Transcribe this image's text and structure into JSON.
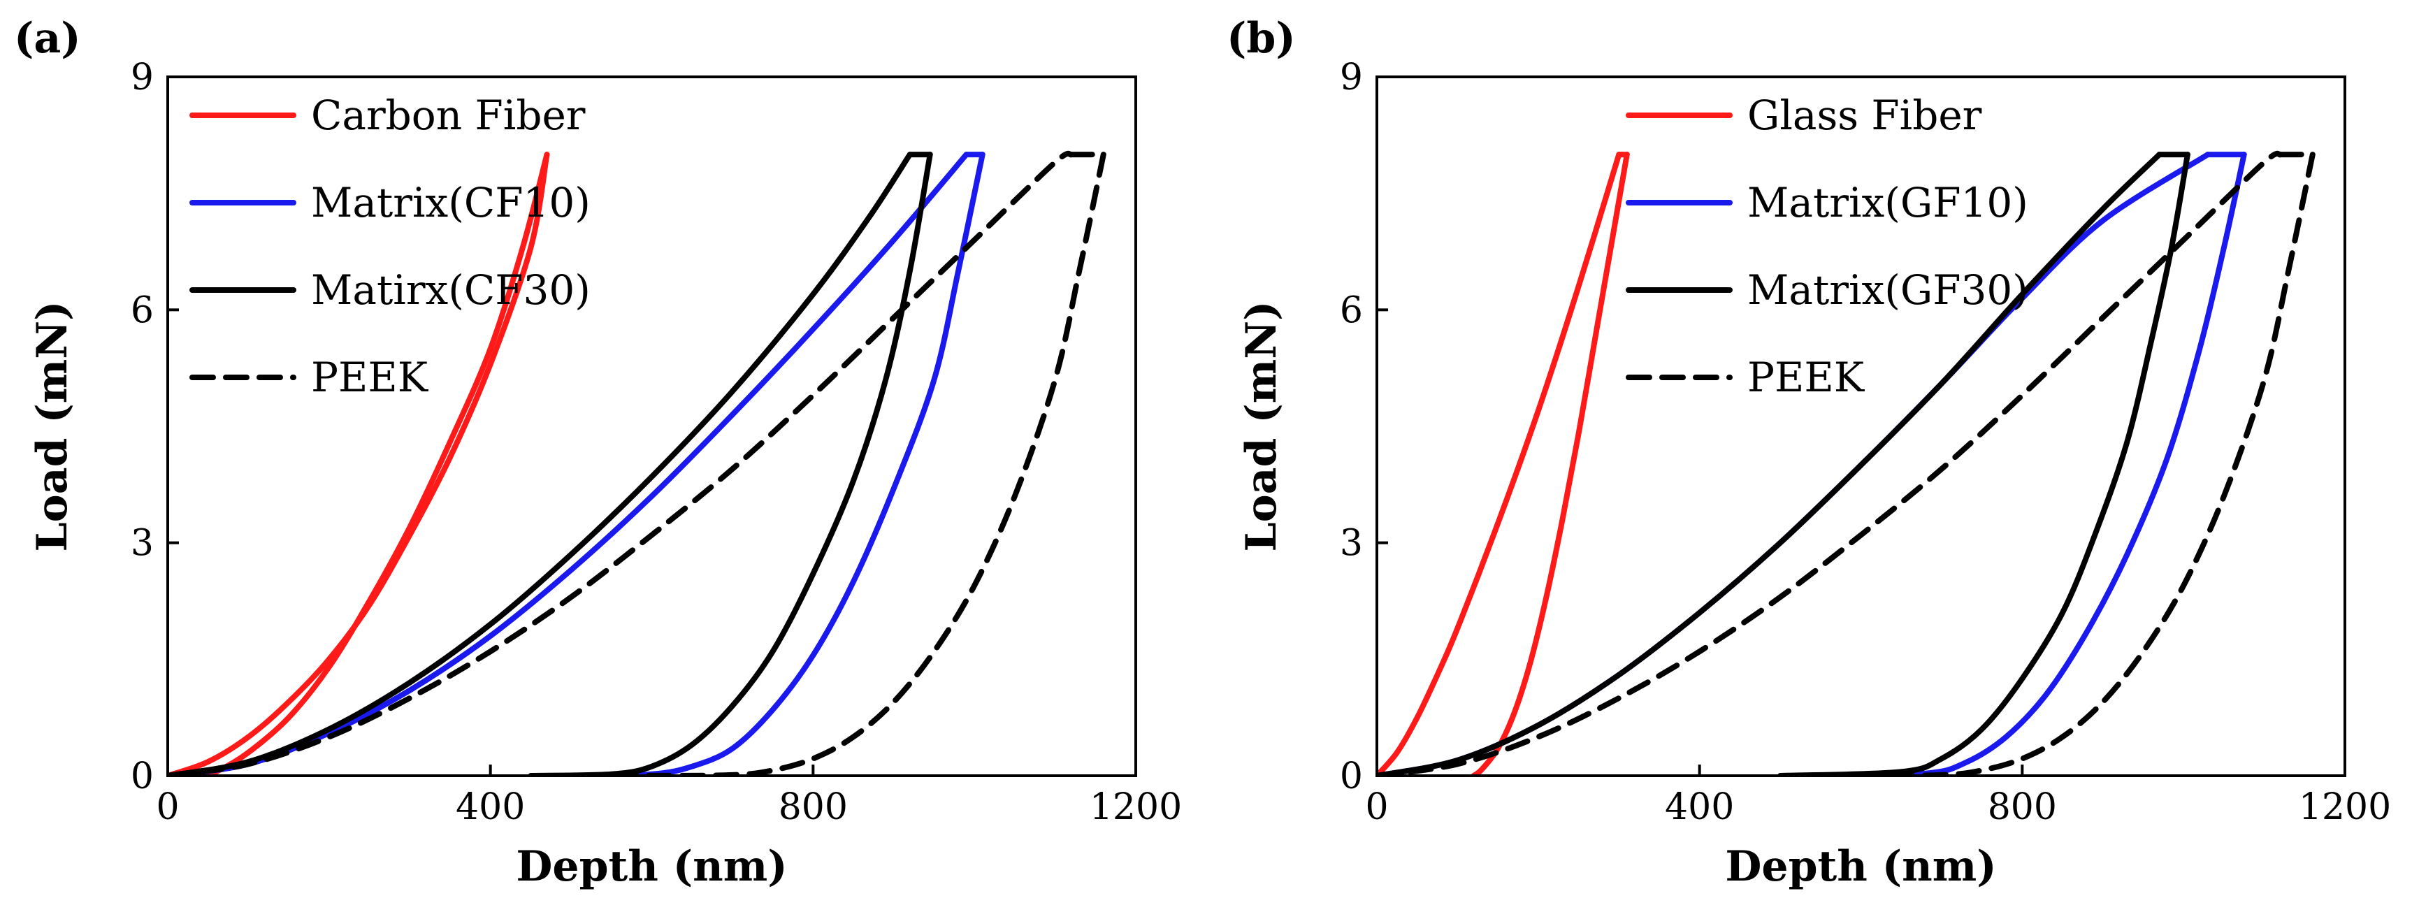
{
  "chart_data": [
    {
      "type": "line",
      "panel_label": "(a)",
      "xlabel": "Depth (nm)",
      "ylabel": "Load (mN)",
      "xlim": [
        0,
        1200
      ],
      "ylim": [
        0,
        9
      ],
      "xticks": [
        0,
        400,
        800,
        1200
      ],
      "yticks": [
        0,
        3,
        6,
        9
      ],
      "legend_position": "top-left",
      "series": [
        {
          "name": "Carbon Fiber",
          "color": "#ff1a1a",
          "dash": "solid",
          "loading": [
            [
              0,
              0
            ],
            [
              50,
              0.18
            ],
            [
              100,
              0.5
            ],
            [
              150,
              0.95
            ],
            [
              200,
              1.5
            ],
            [
              250,
              2.2
            ],
            [
              300,
              3.1
            ],
            [
              350,
              4.1
            ],
            [
              400,
              5.3
            ],
            [
              450,
              6.8
            ],
            [
              470,
              8
            ]
          ],
          "unloading": [
            [
              470,
              8
            ],
            [
              440,
              6.8
            ],
            [
              400,
              5.5
            ],
            [
              350,
              4.3
            ],
            [
              300,
              3.2
            ],
            [
              250,
              2.25
            ],
            [
              200,
              1.4
            ],
            [
              150,
              0.75
            ],
            [
              100,
              0.3
            ],
            [
              60,
              0.05
            ],
            [
              40,
              0
            ]
          ]
        },
        {
          "name": "Matrix(CF10)",
          "color": "#1a1aee",
          "dash": "solid",
          "loading": [
            [
              0,
              0
            ],
            [
              100,
              0.15
            ],
            [
              200,
              0.55
            ],
            [
              300,
              1.1
            ],
            [
              400,
              1.8
            ],
            [
              500,
              2.65
            ],
            [
              600,
              3.6
            ],
            [
              700,
              4.65
            ],
            [
              800,
              5.75
            ],
            [
              900,
              6.9
            ],
            [
              990,
              8
            ]
          ],
          "hold": [
            [
              990,
              8
            ],
            [
              1010,
              8
            ]
          ],
          "unloading": [
            [
              1010,
              8
            ],
            [
              980,
              6.5
            ],
            [
              950,
              5.1
            ],
            [
              900,
              3.7
            ],
            [
              850,
              2.5
            ],
            [
              800,
              1.55
            ],
            [
              750,
              0.85
            ],
            [
              700,
              0.35
            ],
            [
              650,
              0.12
            ],
            [
              600,
              0.02
            ],
            [
              505,
              0
            ]
          ]
        },
        {
          "name": "Matirx(CF30)",
          "color": "#000000",
          "dash": "solid",
          "loading": [
            [
              0,
              0
            ],
            [
              100,
              0.18
            ],
            [
              200,
              0.6
            ],
            [
              300,
              1.2
            ],
            [
              400,
              1.95
            ],
            [
              500,
              2.85
            ],
            [
              600,
              3.85
            ],
            [
              700,
              4.95
            ],
            [
              800,
              6.2
            ],
            [
              870,
              7.2
            ],
            [
              920,
              8
            ]
          ],
          "hold": [
            [
              920,
              8
            ],
            [
              945,
              8
            ]
          ],
          "unloading": [
            [
              945,
              8
            ],
            [
              920,
              6.5
            ],
            [
              890,
              5.1
            ],
            [
              850,
              3.8
            ],
            [
              800,
              2.6
            ],
            [
              750,
              1.6
            ],
            [
              700,
              0.9
            ],
            [
              650,
              0.4
            ],
            [
              600,
              0.12
            ],
            [
              550,
              0.02
            ],
            [
              450,
              0
            ]
          ]
        },
        {
          "name": "PEEK",
          "color": "#000000",
          "dash": "dashed",
          "loading": [
            [
              0,
              0
            ],
            [
              100,
              0.15
            ],
            [
              200,
              0.5
            ],
            [
              300,
              1.0
            ],
            [
              400,
              1.6
            ],
            [
              500,
              2.3
            ],
            [
              600,
              3.1
            ],
            [
              700,
              3.95
            ],
            [
              800,
              4.9
            ],
            [
              900,
              5.9
            ],
            [
              1000,
              6.9
            ],
            [
              1100,
              7.9
            ],
            [
              1120,
              8
            ]
          ],
          "hold": [
            [
              1120,
              8
            ],
            [
              1160,
              8
            ]
          ],
          "unloading": [
            [
              1160,
              8
            ],
            [
              1130,
              6.5
            ],
            [
              1100,
              5.1
            ],
            [
              1050,
              3.6
            ],
            [
              1000,
              2.45
            ],
            [
              950,
              1.6
            ],
            [
              900,
              0.95
            ],
            [
              850,
              0.5
            ],
            [
              800,
              0.22
            ],
            [
              750,
              0.07
            ],
            [
              700,
              0.01
            ],
            [
              580,
              0
            ]
          ]
        }
      ]
    },
    {
      "type": "line",
      "panel_label": "(b)",
      "xlabel": "Depth (nm)",
      "ylabel": "Load (mN)",
      "xlim": [
        0,
        1200
      ],
      "ylim": [
        0,
        9
      ],
      "xticks": [
        0,
        400,
        800,
        1200
      ],
      "yticks": [
        0,
        3,
        6,
        9
      ],
      "legend_position": "top-center",
      "series": [
        {
          "name": "Glass Fiber",
          "color": "#ff1a1a",
          "dash": "solid",
          "loading": [
            [
              0,
              0
            ],
            [
              25,
              0.3
            ],
            [
              50,
              0.75
            ],
            [
              75,
              1.3
            ],
            [
              100,
              1.9
            ],
            [
              150,
              3.25
            ],
            [
              200,
              4.7
            ],
            [
              250,
              6.3
            ],
            [
              300,
              8
            ]
          ],
          "hold": [
            [
              300,
              8
            ],
            [
              310,
              8
            ]
          ],
          "unloading": [
            [
              310,
              8
            ],
            [
              290,
              6.8
            ],
            [
              270,
              5.6
            ],
            [
              250,
              4.4
            ],
            [
              230,
              3.3
            ],
            [
              210,
              2.3
            ],
            [
              190,
              1.45
            ],
            [
              170,
              0.8
            ],
            [
              150,
              0.35
            ],
            [
              130,
              0.08
            ],
            [
              120,
              0
            ]
          ]
        },
        {
          "name": "Matrix(GF10)",
          "color": "#1a1aee",
          "dash": "solid",
          "loading": [
            [
              0,
              0
            ],
            [
              100,
              0.2
            ],
            [
              200,
              0.65
            ],
            [
              300,
              1.3
            ],
            [
              400,
              2.1
            ],
            [
              500,
              3.0
            ],
            [
              600,
              4.0
            ],
            [
              700,
              5.05
            ],
            [
              800,
              6.15
            ],
            [
              900,
              7.15
            ],
            [
              1030,
              8
            ]
          ],
          "hold": [
            [
              1030,
              8
            ],
            [
              1075,
              8
            ]
          ],
          "unloading": [
            [
              1075,
              8
            ],
            [
              1050,
              6.8
            ],
            [
              1020,
              5.5
            ],
            [
              980,
              4.1
            ],
            [
              930,
              2.85
            ],
            [
              880,
              1.85
            ],
            [
              830,
              1.05
            ],
            [
              780,
              0.5
            ],
            [
              730,
              0.17
            ],
            [
              680,
              0.03
            ],
            [
              550,
              0
            ]
          ]
        },
        {
          "name": "Matrix(GF30)",
          "color": "#000000",
          "dash": "solid",
          "loading": [
            [
              0,
              0
            ],
            [
              100,
              0.2
            ],
            [
              200,
              0.65
            ],
            [
              300,
              1.3
            ],
            [
              400,
              2.1
            ],
            [
              500,
              3.0
            ],
            [
              600,
              4.0
            ],
            [
              700,
              5.05
            ],
            [
              800,
              6.2
            ],
            [
              900,
              7.3
            ],
            [
              970,
              8
            ]
          ],
          "hold": [
            [
              970,
              8
            ],
            [
              1005,
              8
            ]
          ],
          "unloading": [
            [
              1005,
              8
            ],
            [
              985,
              6.8
            ],
            [
              960,
              5.6
            ],
            [
              930,
              4.3
            ],
            [
              890,
              3.1
            ],
            [
              850,
              2.1
            ],
            [
              800,
              1.25
            ],
            [
              750,
              0.6
            ],
            [
              700,
              0.22
            ],
            [
              650,
              0.05
            ],
            [
              500,
              0
            ]
          ]
        },
        {
          "name": "PEEK",
          "color": "#000000",
          "dash": "dashed",
          "loading": [
            [
              0,
              0
            ],
            [
              100,
              0.15
            ],
            [
              200,
              0.5
            ],
            [
              300,
              1.0
            ],
            [
              400,
              1.6
            ],
            [
              500,
              2.3
            ],
            [
              600,
              3.1
            ],
            [
              700,
              3.95
            ],
            [
              800,
              4.9
            ],
            [
              900,
              5.9
            ],
            [
              1000,
              6.9
            ],
            [
              1100,
              7.9
            ],
            [
              1120,
              8
            ]
          ],
          "hold": [
            [
              1120,
              8
            ],
            [
              1160,
              8
            ]
          ],
          "unloading": [
            [
              1160,
              8
            ],
            [
              1130,
              6.5
            ],
            [
              1100,
              5.1
            ],
            [
              1050,
              3.6
            ],
            [
              1000,
              2.45
            ],
            [
              950,
              1.6
            ],
            [
              900,
              0.95
            ],
            [
              850,
              0.5
            ],
            [
              800,
              0.22
            ],
            [
              750,
              0.07
            ],
            [
              700,
              0.01
            ],
            [
              580,
              0
            ]
          ]
        }
      ]
    }
  ]
}
